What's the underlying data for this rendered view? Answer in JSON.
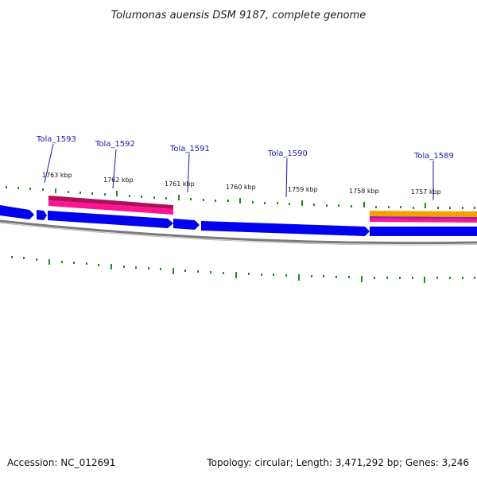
{
  "title": "Tolumonas auensis DSM 9187, complete genome",
  "footer": {
    "accession": "Accession: NC_012691",
    "summary": "Topology: circular; Length: 3,471,292 bp; Genes: 3,246"
  },
  "colors": {
    "cds": "#0000ee",
    "rna_pink": "#ff1493",
    "rna_pink_dark": "#b0105a",
    "gene_orange": "#f5a000",
    "gene_purple": "#a020a0",
    "backbone": "#888888",
    "tick": "#1e8c1e",
    "label": "#1a1aa8"
  },
  "kbp_labels": [
    {
      "kbp": 1763,
      "text": "1763 kbp"
    },
    {
      "kbp": 1762,
      "text": "1762 kbp"
    },
    {
      "kbp": 1761,
      "text": "1761 kbp"
    },
    {
      "kbp": 1760,
      "text": "1760 kbp"
    },
    {
      "kbp": 1759,
      "text": "1759 kbp"
    },
    {
      "kbp": 1758,
      "text": "1758 kbp"
    },
    {
      "kbp": 1757,
      "text": "1757 kbp"
    }
  ],
  "gene_labels": [
    {
      "name": "Tola_1593"
    },
    {
      "name": "Tola_1592"
    },
    {
      "name": "Tola_1591"
    },
    {
      "name": "Tola_1590"
    },
    {
      "name": "Tola_1589"
    }
  ]
}
